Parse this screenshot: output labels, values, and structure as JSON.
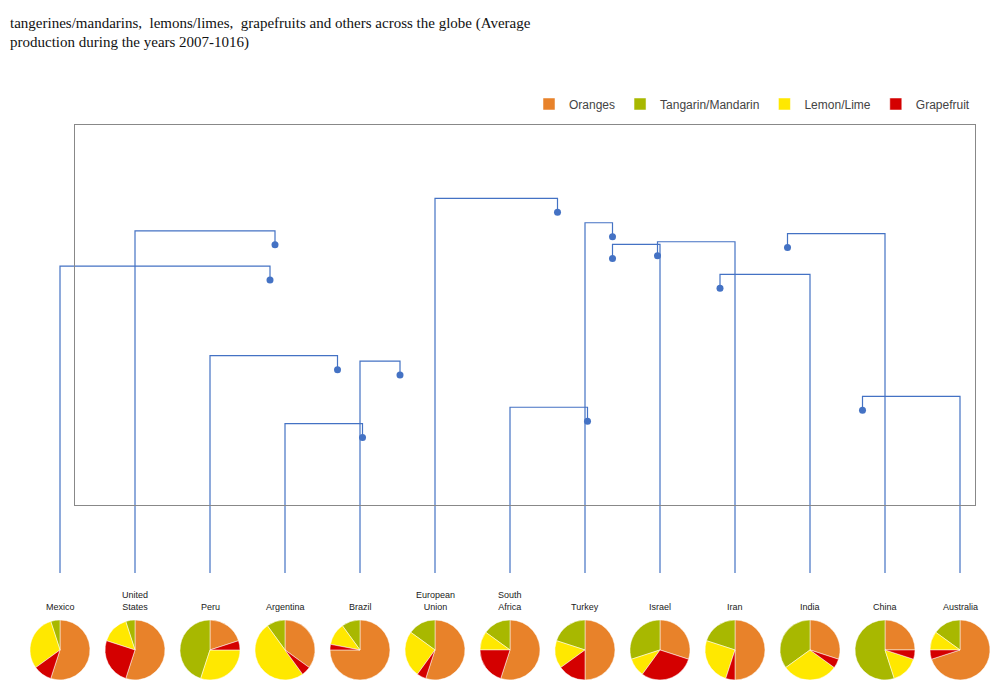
{
  "chart_data": [
    {
      "type": "pie",
      "title": "tangerines/mandarins,  lemons/limes,  grapefruits and others across the globe (Average\nproduction during the years 2007-1016)",
      "categories": [
        "Oranges",
        "Tangarin/Mandarin",
        "Lemon/Lime",
        "Grapefruit"
      ],
      "colors": [
        "#E8822A",
        "#A8B800",
        "#FFE800",
        "#D40000"
      ],
      "legend": "top right",
      "series": [
        {
          "name": "Mexico",
          "values": [
            55,
            5,
            30,
            10
          ]
        },
        {
          "name": "United\nStates",
          "values": [
            55,
            5,
            15,
            25
          ]
        },
        {
          "name": "Peru",
          "values": [
            20,
            45,
            30,
            5
          ]
        },
        {
          "name": "Argentina",
          "values": [
            35,
            10,
            50,
            5
          ]
        },
        {
          "name": "Brazil",
          "values": [
            75,
            10,
            12,
            3
          ]
        },
        {
          "name": "European\nUnion",
          "values": [
            55,
            15,
            25,
            5
          ]
        },
        {
          "name": "South\nAfrica",
          "values": [
            55,
            15,
            10,
            20
          ]
        },
        {
          "name": "Turkey",
          "values": [
            50,
            20,
            15,
            15
          ]
        },
        {
          "name": "Israel",
          "values": [
            30,
            30,
            10,
            30
          ]
        },
        {
          "name": "Iran",
          "values": [
            50,
            20,
            25,
            5
          ]
        },
        {
          "name": "India",
          "values": [
            30,
            35,
            30,
            5
          ]
        },
        {
          "name": "China",
          "values": [
            25,
            55,
            15,
            5
          ]
        },
        {
          "name": "Australia",
          "values": [
            70,
            15,
            10,
            5
          ]
        }
      ]
    },
    {
      "type": "scatter",
      "x": [
        -102,
        -100,
        -75,
        -65,
        -50,
        13,
        25,
        35,
        35,
        53,
        78,
        105,
        135
      ],
      "y": [
        23,
        36,
        -10,
        -35,
        -12,
        48,
        -29,
        39,
        31,
        32,
        20,
        35,
        -25
      ],
      "color": "#4472C4",
      "xlim": [
        -180,
        180
      ],
      "ylim": [
        -60,
        80
      ],
      "tick_labels": false,
      "grid": false
    }
  ]
}
